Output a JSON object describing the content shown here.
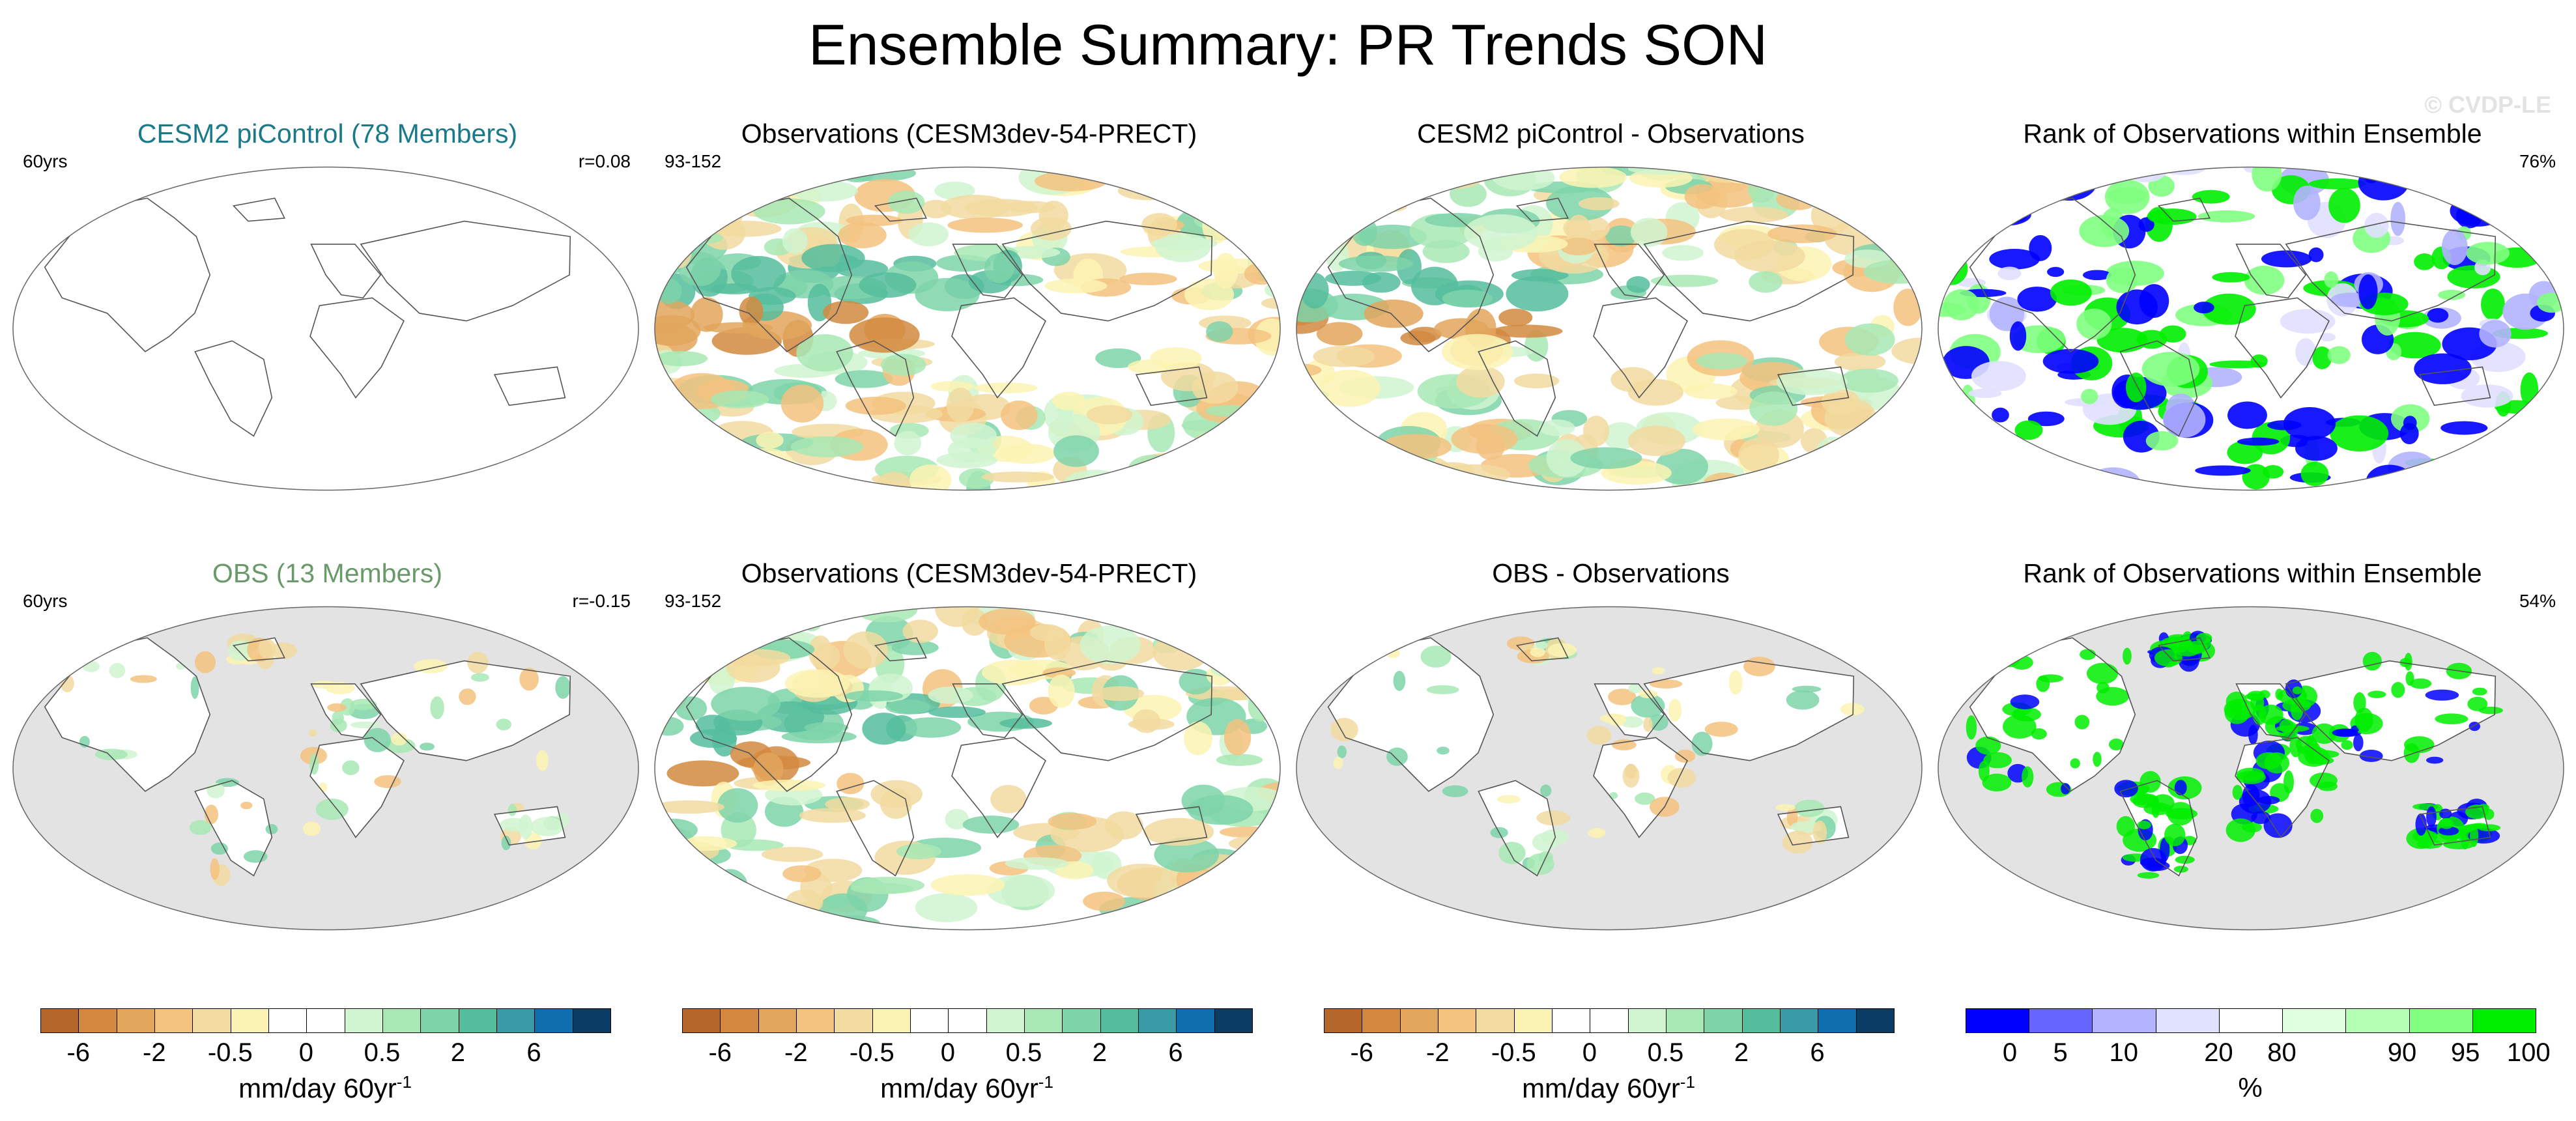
{
  "figure": {
    "title": "Ensemble Summary: PR Trends SON",
    "watermark": "© CVDP-LE"
  },
  "chart_data": [
    {
      "type": "heatmap",
      "map": "world-robinson",
      "title": "CESM2 piControl (78 Members)",
      "title_color": "#1a7a8a",
      "left_label": "60yrs",
      "right_label": "r=0.08",
      "land_fill": "#ffffff",
      "pattern": "blank",
      "colorbar": "pr"
    },
    {
      "type": "heatmap",
      "map": "world-robinson",
      "title": "Observations (CESM3dev-54-PRECT)",
      "title_color": "#000000",
      "left_label": "93-152",
      "right_label": "",
      "land_fill": "#ffffff",
      "pattern": "full",
      "colorbar": "pr"
    },
    {
      "type": "heatmap",
      "map": "world-robinson",
      "title": "CESM2 piControl - Observations",
      "title_color": "#000000",
      "left_label": "",
      "right_label": "",
      "land_fill": "#ffffff",
      "pattern": "full",
      "colorbar": "pr"
    },
    {
      "type": "heatmap",
      "map": "world-robinson",
      "title": "Rank of Observations within Ensemble",
      "title_color": "#000000",
      "left_label": "",
      "right_label": "76%",
      "land_fill": "#ffffff",
      "pattern": "rank",
      "colorbar": "rank"
    },
    {
      "type": "heatmap",
      "map": "world-robinson",
      "title": "OBS (13 Members)",
      "title_color": "#6a9a6a",
      "left_label": "60yrs",
      "right_label": "r=-0.15",
      "land_fill": "#ffffff",
      "ocean_fill": "#e3e3e3",
      "pattern": "landsparse",
      "colorbar": "pr"
    },
    {
      "type": "heatmap",
      "map": "world-robinson",
      "title": "Observations (CESM3dev-54-PRECT)",
      "title_color": "#000000",
      "left_label": "93-152",
      "right_label": "",
      "land_fill": "#ffffff",
      "pattern": "full",
      "colorbar": "pr"
    },
    {
      "type": "heatmap",
      "map": "world-robinson",
      "title": "OBS - Observations",
      "title_color": "#000000",
      "left_label": "",
      "right_label": "",
      "land_fill": "#ffffff",
      "ocean_fill": "#e3e3e3",
      "pattern": "landsparse",
      "colorbar": "pr"
    },
    {
      "type": "heatmap",
      "map": "world-robinson",
      "title": "Rank of Observations within Ensemble",
      "title_color": "#000000",
      "left_label": "",
      "right_label": "54%",
      "land_fill": "#ffffff",
      "ocean_fill": "#e3e3e3",
      "pattern": "rankland",
      "colorbar": "rank"
    }
  ],
  "colorbars": {
    "pr": {
      "colors": [
        "#b5672a",
        "#d2893f",
        "#e2a65d",
        "#f3c27f",
        "#f2dba0",
        "#fbf3b3",
        "#ffffff",
        "#ffffff",
        "#d0f5d0",
        "#a7e8b4",
        "#7ed3a9",
        "#55bd9c",
        "#3b9aa7",
        "#0e6eae",
        "#0b3c66"
      ],
      "ticks": [
        "-6",
        "-2",
        "-0.5",
        "0",
        "0.5",
        "2",
        "6"
      ],
      "label": "mm/day 60yr",
      "label_sup": "-1"
    },
    "rank": {
      "colors": [
        "#0000ff",
        "#6666ff",
        "#b3b3ff",
        "#e0e0ff",
        "#ffffff",
        "#e0ffe0",
        "#b3ffb3",
        "#80ff80",
        "#00ee00"
      ],
      "ticks": [
        "0",
        "5",
        "10",
        "20",
        "80",
        "90",
        "95",
        "100"
      ],
      "label": "%"
    }
  }
}
